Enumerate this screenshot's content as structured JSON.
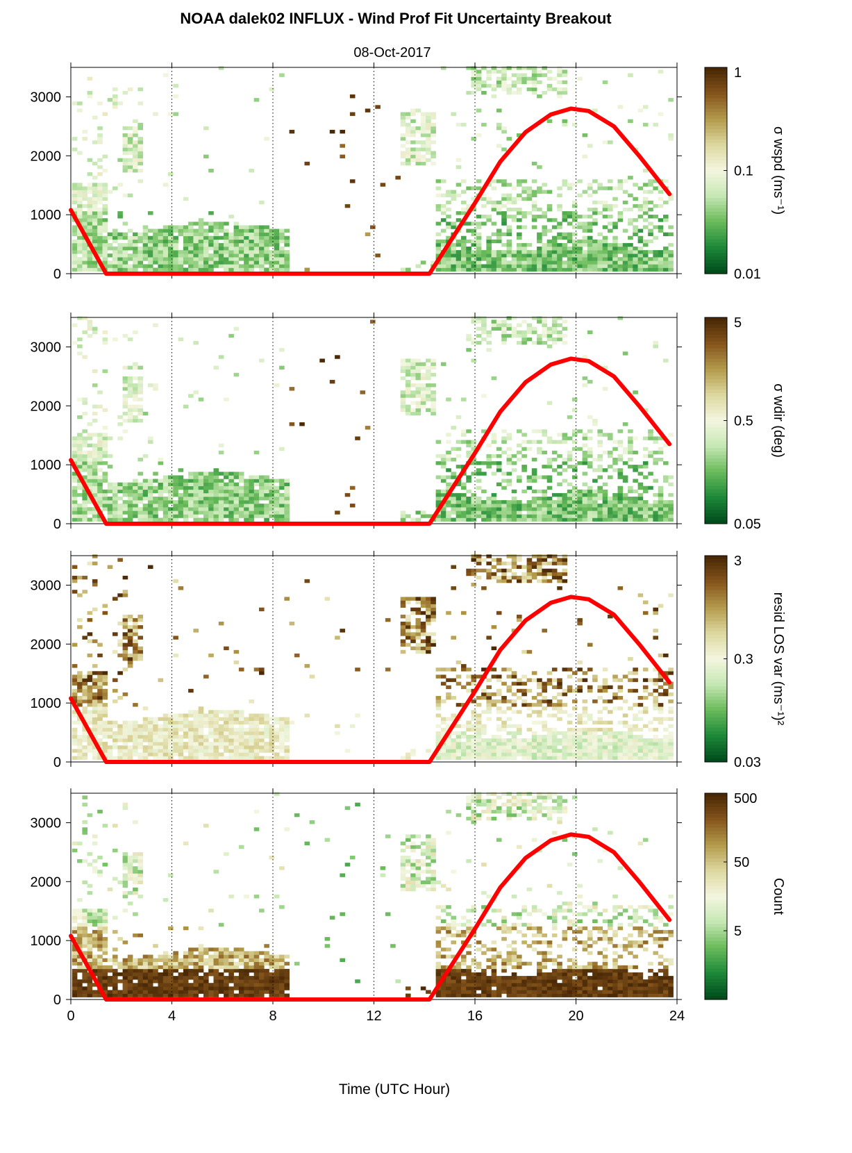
{
  "title": "NOAA dalek02 INFLUX - Wind Prof Fit Uncertainty Breakout",
  "subtitle": "08-Oct-2017",
  "xlabel": "Time (UTC Hour)",
  "colors": {
    "colormap": [
      "#004d1c",
      "#1f8a3a",
      "#6cbc5c",
      "#c6e8b4",
      "#f4f6e0",
      "#ddd8a0",
      "#b59c4e",
      "#86561c",
      "#4a2805"
    ],
    "sun_curve": "#ff0000",
    "grid": "#000000"
  },
  "chart_data": [
    {
      "type": "heatmap",
      "name": "wspd",
      "colorbar_label": "σ wspd (ms⁻¹)",
      "colorbar_scale": "log",
      "colorbar_range": [
        0.01,
        1
      ],
      "colorbar_ticks": [
        "1",
        "0.1",
        "0.01"
      ],
      "xlim": [
        0,
        24
      ],
      "ylim": [
        0,
        3500
      ],
      "xticks": [
        "0",
        "4",
        "8",
        "12",
        "16",
        "20",
        "24"
      ],
      "yticks": [
        "0",
        "1000",
        "2000",
        "3000"
      ],
      "grid": "dotted vertical lines at 4, 8, 12, 16, 20",
      "sun_curve": {
        "x": [
          0,
          1.4,
          14.2,
          16,
          17,
          18,
          19,
          19.8,
          20.5,
          21.5,
          22.5,
          23.7
        ],
        "y": [
          1080,
          0,
          0,
          1200,
          1900,
          2400,
          2700,
          2800,
          2760,
          2500,
          2000,
          1350
        ]
      }
    },
    {
      "type": "heatmap",
      "name": "wdir",
      "colorbar_label": "σ wdir (deg)",
      "colorbar_scale": "log",
      "colorbar_range": [
        0.05,
        5
      ],
      "colorbar_ticks": [
        "5",
        "0.5",
        "0.05"
      ],
      "xlim": [
        0,
        24
      ],
      "ylim": [
        0,
        3500
      ],
      "xticks": [
        "0",
        "4",
        "8",
        "12",
        "16",
        "20",
        "24"
      ],
      "yticks": [
        "0",
        "1000",
        "2000",
        "3000"
      ],
      "grid": "dotted vertical lines at 4, 8, 12, 16, 20",
      "sun_curve": {
        "x": [
          0,
          1.4,
          14.2,
          16,
          17,
          18,
          19,
          19.8,
          20.5,
          21.5,
          22.5,
          23.7
        ],
        "y": [
          1080,
          0,
          0,
          1200,
          1900,
          2400,
          2700,
          2800,
          2760,
          2500,
          2000,
          1350
        ]
      }
    },
    {
      "type": "heatmap",
      "name": "resid",
      "colorbar_label": "resid LOS var (ms⁻¹)²",
      "colorbar_scale": "log",
      "colorbar_range": [
        0.03,
        3
      ],
      "colorbar_ticks": [
        "3",
        "0.3",
        "0.03"
      ],
      "xlim": [
        0,
        24
      ],
      "ylim": [
        0,
        3500
      ],
      "xticks": [
        "0",
        "4",
        "8",
        "12",
        "16",
        "20",
        "24"
      ],
      "yticks": [
        "0",
        "1000",
        "2000",
        "3000"
      ],
      "grid": "dotted vertical lines at 4, 8, 12, 16, 20",
      "sun_curve": {
        "x": [
          0,
          1.4,
          14.2,
          16,
          17,
          18,
          19,
          19.8,
          20.5,
          21.5,
          22.5,
          23.7
        ],
        "y": [
          1080,
          0,
          0,
          1200,
          1900,
          2400,
          2700,
          2800,
          2760,
          2500,
          2000,
          1350
        ]
      }
    },
    {
      "type": "heatmap",
      "name": "count",
      "colorbar_label": "Count",
      "colorbar_scale": "log",
      "colorbar_range": [
        0.5,
        500
      ],
      "colorbar_ticks": [
        "500",
        "50",
        "5"
      ],
      "xlim": [
        0,
        24
      ],
      "ylim": [
        0,
        3500
      ],
      "xticks": [
        "0",
        "4",
        "8",
        "12",
        "16",
        "20",
        "24"
      ],
      "yticks": [
        "0",
        "1000",
        "2000",
        "3000"
      ],
      "grid": "dotted vertical lines at 4, 8, 12, 16, 20",
      "sun_curve": {
        "x": [
          0,
          1.4,
          14.2,
          16,
          17,
          18,
          19,
          19.8,
          20.5,
          21.5,
          22.5,
          23.7
        ],
        "y": [
          1080,
          0,
          0,
          1200,
          1900,
          2400,
          2700,
          2800,
          2760,
          2500,
          2000,
          1350
        ]
      }
    }
  ]
}
